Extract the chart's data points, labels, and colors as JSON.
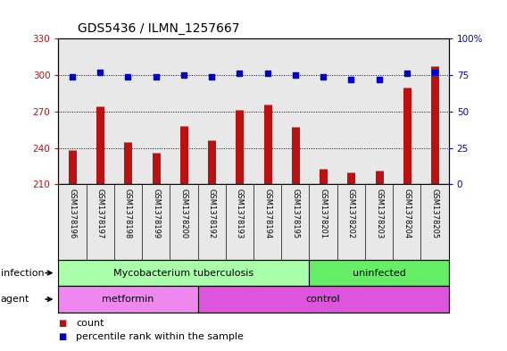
{
  "title": "GDS5436 / ILMN_1257667",
  "samples": [
    "GSM1378196",
    "GSM1378197",
    "GSM1378198",
    "GSM1378199",
    "GSM1378200",
    "GSM1378192",
    "GSM1378193",
    "GSM1378194",
    "GSM1378195",
    "GSM1378201",
    "GSM1378202",
    "GSM1378203",
    "GSM1378204",
    "GSM1378205"
  ],
  "counts": [
    238,
    274,
    245,
    236,
    258,
    246,
    271,
    276,
    257,
    223,
    220,
    221,
    290,
    307
  ],
  "percentiles": [
    74,
    77,
    74,
    74,
    75,
    74,
    76,
    76,
    75,
    74,
    72,
    72,
    76,
    77
  ],
  "ylim_left": [
    210,
    330
  ],
  "ylim_right": [
    0,
    100
  ],
  "yticks_left": [
    210,
    240,
    270,
    300,
    330
  ],
  "yticks_right": [
    0,
    25,
    50,
    75,
    100
  ],
  "bar_color": "#BB1111",
  "dot_color": "#0000CC",
  "background_color": "#E8E8E8",
  "infection_groups": [
    {
      "label": "Mycobacterium tuberculosis",
      "start": 0,
      "end": 9,
      "color": "#AAFFAA"
    },
    {
      "label": "uninfected",
      "start": 9,
      "end": 14,
      "color": "#66EE66"
    }
  ],
  "agent_groups": [
    {
      "label": "metformin",
      "start": 0,
      "end": 5,
      "color": "#EE88EE"
    },
    {
      "label": "control",
      "start": 5,
      "end": 14,
      "color": "#DD55DD"
    }
  ],
  "legend_count_label": "count",
  "legend_pct_label": "percentile rank within the sample",
  "grid_color": "#000000",
  "title_fontsize": 10,
  "tick_fontsize": 7.5,
  "label_fontsize": 8,
  "row_fontsize": 8,
  "bar_color_hex": "#BB1111",
  "dot_color_hex": "#0000CC"
}
